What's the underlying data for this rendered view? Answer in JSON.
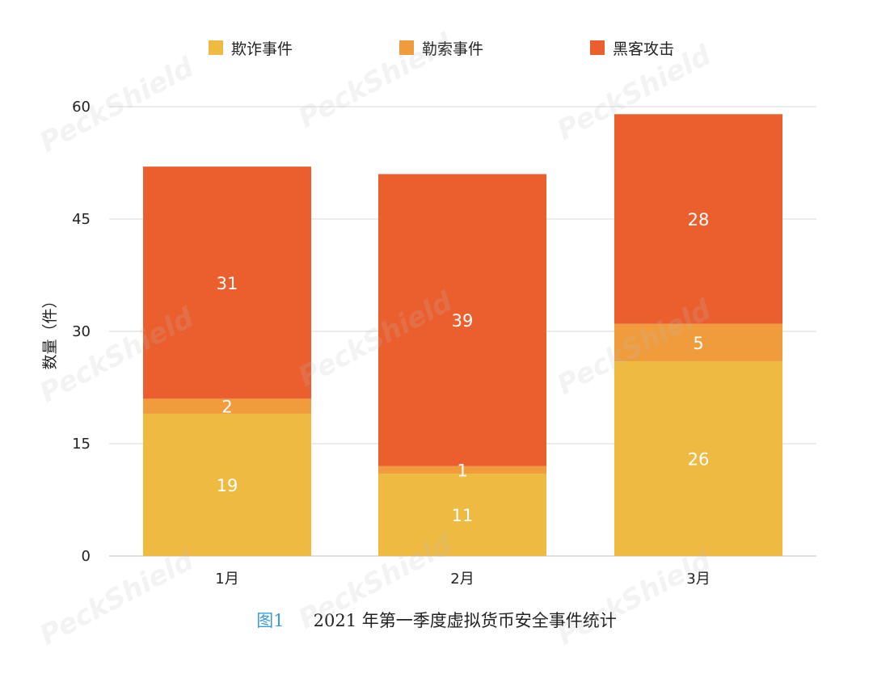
{
  "watermark_text": "PeckShield",
  "caption": {
    "figure_label": "图1",
    "title": "2021 年第一季度虚拟货币安全事件统计"
  },
  "colors": {
    "fraud": "#EEBA42",
    "ransom": "#F19C3C",
    "hack": "#EB5F2F",
    "grid": "#d9d9d9",
    "axis_text": "#222222"
  },
  "chart_data": {
    "type": "bar",
    "stacked": true,
    "categories": [
      "1月",
      "2月",
      "3月"
    ],
    "series": [
      {
        "name": "欺诈事件",
        "values": [
          19,
          11,
          26
        ]
      },
      {
        "name": "勒索事件",
        "values": [
          2,
          1,
          5
        ]
      },
      {
        "name": "黑客攻击",
        "values": [
          31,
          39,
          28
        ]
      }
    ],
    "title": "",
    "xlabel": "",
    "ylabel": "数量（件）",
    "ylim": [
      0,
      60
    ],
    "yticks": [
      0,
      15,
      30,
      45,
      60
    ],
    "grid": true,
    "legend_position": "top"
  }
}
